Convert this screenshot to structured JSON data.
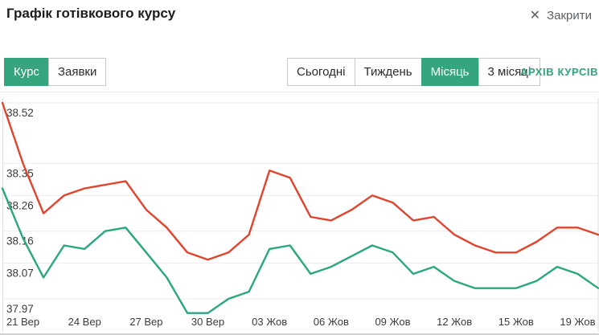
{
  "header": {
    "title": "Графік готівкового курсу",
    "close_label": "Закрити",
    "close_icon": "✕"
  },
  "controls": {
    "view_tabs": [
      {
        "label": "Курс",
        "active": true
      },
      {
        "label": "Заявки",
        "active": false
      }
    ],
    "period_tabs": [
      {
        "label": "Сьогодні",
        "active": false
      },
      {
        "label": "Тиждень",
        "active": false
      },
      {
        "label": "Місяць",
        "active": true
      },
      {
        "label": "3 місяці",
        "active": false
      }
    ],
    "archive_link": "АРХІВ КУРСІВ"
  },
  "colors": {
    "accent_green": "#35a57e",
    "line_red": "#e2432c",
    "line_green": "#2aa77d",
    "grid": "#ececec",
    "frame": "#dedede",
    "axis_text": "#3b3b3b"
  },
  "chart_data": {
    "type": "line",
    "title": "Графік готівкового курсу (місяць)",
    "grid": "horizontal",
    "legend": "none",
    "ylim": [
      37.93,
      38.52
    ],
    "y_tick_labels": [
      "38.52",
      "38.35",
      "38.26",
      "38.16",
      "38.07",
      "37.97"
    ],
    "y_tick_values": [
      38.52,
      38.35,
      38.26,
      38.16,
      38.07,
      37.97
    ],
    "x_tick_labels": [
      "21 Вер",
      "24 Вер",
      "27 Вер",
      "30 Вер",
      "03 Жов",
      "06 Жов",
      "09 Жов",
      "12 Жов",
      "15 Жов",
      "19 Жов"
    ],
    "x_tick_indices": [
      1,
      4,
      7,
      10,
      13,
      16,
      19,
      22,
      25,
      28
    ],
    "series": [
      {
        "name": "red",
        "color": "#e2432c",
        "values": [
          38.52,
          38.35,
          38.21,
          38.26,
          38.28,
          38.29,
          38.3,
          38.22,
          38.17,
          38.1,
          38.08,
          38.1,
          38.15,
          38.33,
          38.31,
          38.2,
          38.19,
          38.22,
          38.26,
          38.24,
          38.19,
          38.2,
          38.15,
          38.12,
          38.1,
          38.1,
          38.13,
          38.17,
          38.17,
          38.15
        ]
      },
      {
        "name": "green",
        "color": "#2aa77d",
        "values": [
          38.28,
          38.14,
          38.03,
          38.12,
          38.11,
          38.16,
          38.17,
          38.1,
          38.03,
          37.93,
          37.93,
          37.97,
          37.99,
          38.11,
          38.12,
          38.04,
          38.06,
          38.09,
          38.12,
          38.1,
          38.04,
          38.06,
          38.02,
          38.0,
          38.0,
          38.0,
          38.02,
          38.06,
          38.04,
          38.0
        ]
      }
    ]
  }
}
